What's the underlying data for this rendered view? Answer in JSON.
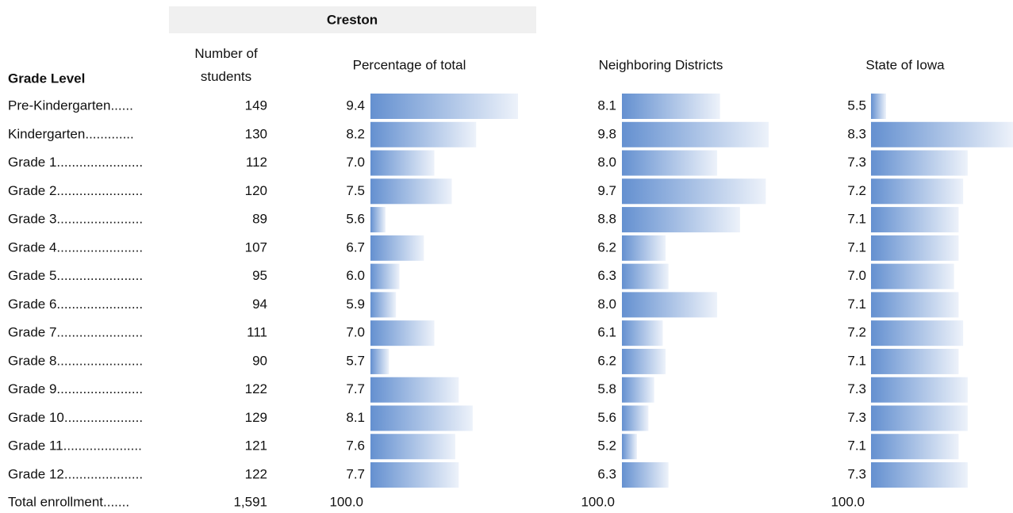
{
  "header": {
    "title": "Creston"
  },
  "table": {
    "columns": [
      "Grade Level",
      "Number of students",
      "Percentage of total",
      "Neighboring Districts",
      "State of Iowa"
    ],
    "rows": [
      [
        "Pre-Kindergarten......",
        "149",
        "9.4",
        "8.1",
        "5.5"
      ],
      [
        "Kindergarten.............",
        "130",
        "8.2",
        "9.8",
        "8.3"
      ],
      [
        "Grade 1.......................",
        "112",
        "7.0",
        "8.0",
        "7.3"
      ],
      [
        "Grade 2.......................",
        "120",
        "7.5",
        "9.7",
        "7.2"
      ],
      [
        "Grade 3.......................",
        "89",
        "5.6",
        "8.8",
        "7.1"
      ],
      [
        "Grade 4.......................",
        "107",
        "6.7",
        "6.2",
        "7.1"
      ],
      [
        "Grade 5.......................",
        "95",
        "6.0",
        "6.3",
        "7.0"
      ],
      [
        "Grade 6.......................",
        "94",
        "5.9",
        "8.0",
        "7.1"
      ],
      [
        "Grade 7.......................",
        "111",
        "7.0",
        "6.1",
        "7.2"
      ],
      [
        "Grade 8.......................",
        "90",
        "5.7",
        "6.2",
        "7.1"
      ],
      [
        "Grade 9.......................",
        "122",
        "7.7",
        "5.8",
        "7.3"
      ],
      [
        "Grade 10.....................",
        "129",
        "8.1",
        "5.6",
        "7.3"
      ],
      [
        "Grade 11.....................",
        "121",
        "7.6",
        "5.2",
        "7.1"
      ],
      [
        "Grade 12.....................",
        "122",
        "7.7",
        "6.3",
        "7.3"
      ]
    ],
    "total": [
      "Total enrollment.......",
      "1,591",
      "100.0",
      "100.0",
      "100.0"
    ]
  }
}
